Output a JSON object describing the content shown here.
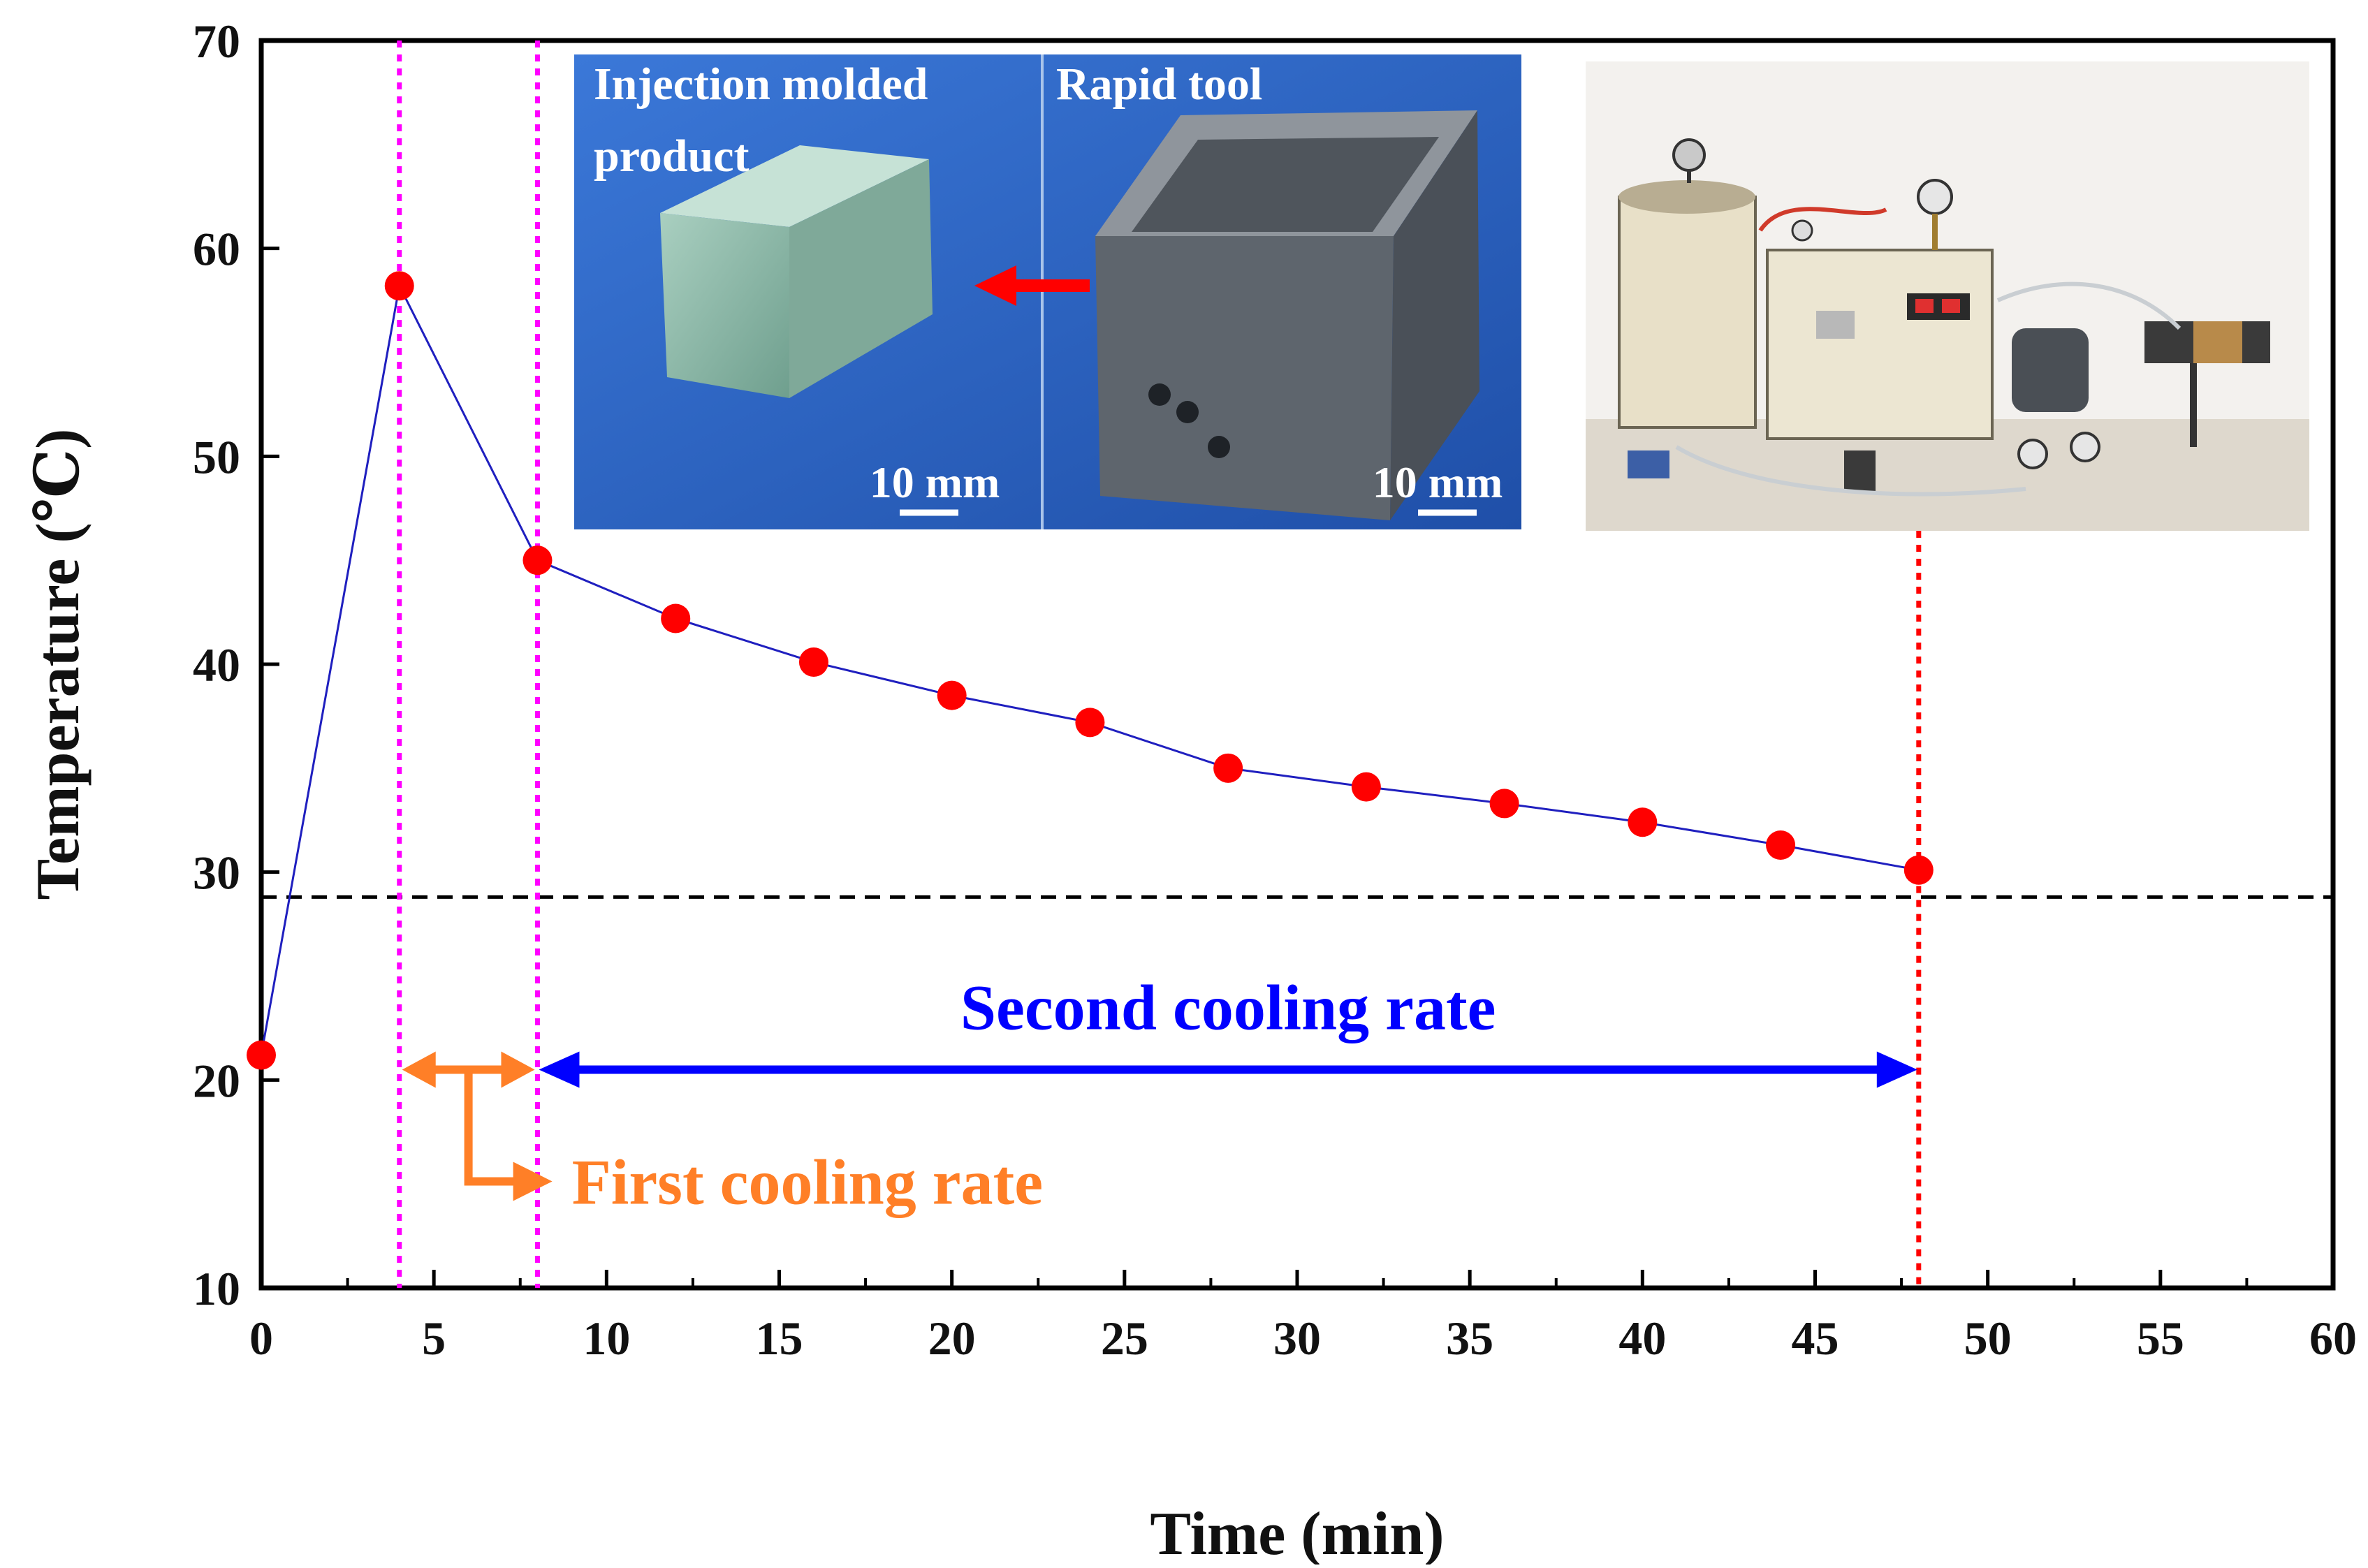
{
  "chart_data": {
    "type": "line",
    "title": "",
    "xlabel": "Time (min)",
    "ylabel": "Temperature (℃)",
    "xlim": [
      0,
      60
    ],
    "ylim": [
      10,
      70
    ],
    "x_ticks": [
      0,
      5,
      10,
      15,
      20,
      25,
      30,
      35,
      40,
      45,
      50,
      55,
      60
    ],
    "y_ticks": [
      10,
      20,
      30,
      40,
      50,
      60,
      70
    ],
    "series": [
      {
        "name": "Temperature",
        "line_color": "#1f1fbf",
        "marker_color": "#ff0000",
        "x": [
          0,
          4,
          8,
          12,
          16,
          20,
          24,
          28,
          32,
          36,
          40,
          44,
          48
        ],
        "y": [
          21.2,
          58.2,
          45.0,
          42.2,
          40.1,
          38.5,
          37.2,
          35.0,
          34.1,
          33.3,
          32.4,
          31.3,
          30.1
        ]
      }
    ],
    "reference_lines": {
      "horizontal_dashed_y": 28.8,
      "vertical_magenta_x": [
        4,
        8
      ],
      "vertical_red_x": 48
    },
    "annotations": {
      "second_rate": {
        "text": "Second cooling rate",
        "x_start": 8,
        "x_end": 48,
        "y": 20.5,
        "color": "#0000ff"
      },
      "first_rate": {
        "text": "First cooling rate",
        "x_start": 4,
        "x_end": 8,
        "y": 20.5,
        "color": "#ff7f27"
      }
    }
  },
  "insets": {
    "left_photo": {
      "label_left": "Injection molded",
      "label_left_line2": "product",
      "label_right": "Rapid tool",
      "scale_left": "10 mm",
      "scale_right": "10 mm"
    },
    "right_photo": {}
  },
  "colors": {
    "magenta": "#ff00ff",
    "red": "#ff0000",
    "blue": "#0000ff",
    "orange": "#ff7f27",
    "photo_blue": "#2b66c8"
  }
}
